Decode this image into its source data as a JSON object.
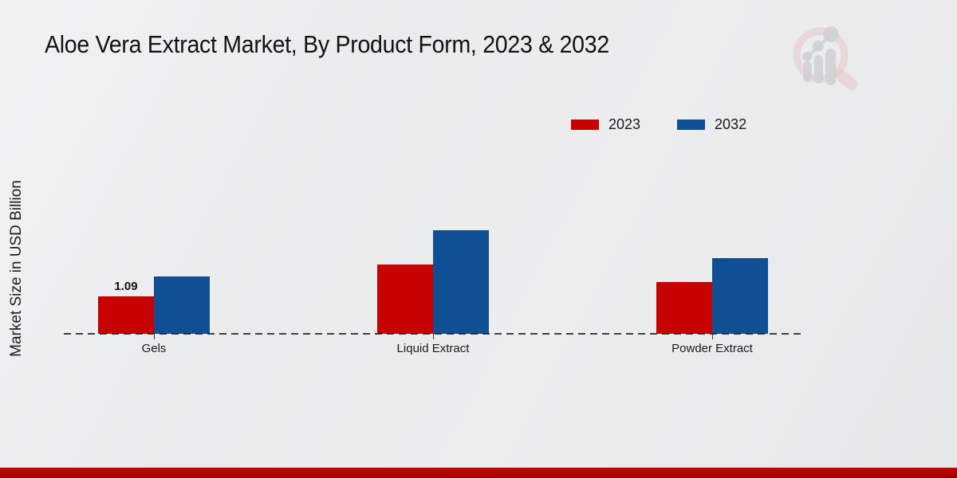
{
  "page": {
    "watermark_icon": "magnifier-bar-chart-logo",
    "bottom_bar_color": "#b40101"
  },
  "chart_data": {
    "type": "bar",
    "title": "Aloe Vera Extract Market, By Product Form, 2023 & 2032",
    "ylabel": "Market Size in USD Billion",
    "xlabel": "",
    "categories": [
      "Gels",
      "Liquid Extract",
      "Powder Extract"
    ],
    "series": [
      {
        "name": "2023",
        "color": "#C80202",
        "values": [
          1.09,
          2.02,
          1.51
        ]
      },
      {
        "name": "2032",
        "color": "#0F4F94",
        "values": [
          1.67,
          3.02,
          2.21
        ]
      }
    ],
    "value_labels": [
      {
        "category": "Gels",
        "series": "2023",
        "text": "1.09"
      }
    ],
    "ylim": [
      0,
      3.5
    ],
    "grid": false,
    "y_axis_ticks_visible": false,
    "baseline_style": "dashed",
    "legend_position": "top-right"
  }
}
